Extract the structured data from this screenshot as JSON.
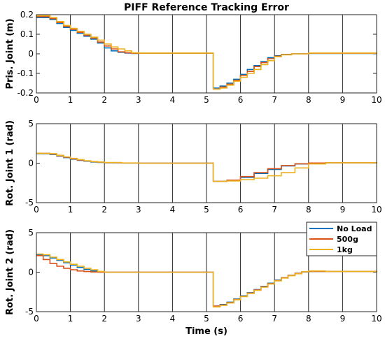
{
  "colors": {
    "No Load": "#0072BD",
    "500g": "#D95319",
    "1kg": "#EDB120"
  },
  "legend": {
    "placement": "top-right of bottom panel",
    "entries": [
      "No Load",
      "500g",
      "1kg"
    ]
  },
  "chart_data": [
    {
      "type": "line",
      "title": "PIFF Reference Tracking Error",
      "ylabel": "Pris. Joint (m)",
      "xlabel": "",
      "xlim": [
        0,
        10
      ],
      "ylim": [
        -0.2,
        0.2
      ],
      "xticks": [
        0,
        1,
        2,
        3,
        4,
        5,
        6,
        7,
        8,
        9,
        10
      ],
      "yticks": [
        0.2,
        0.1,
        0,
        -0.1,
        -0.2
      ],
      "ytick_labels": [
        "0.2",
        "0.1",
        "0",
        "-0.1",
        "-0.2"
      ],
      "grid": "vertical",
      "series": [
        {
          "name": "No Load",
          "x": [
            0,
            0.4,
            0.6,
            0.8,
            1.0,
            1.2,
            1.4,
            1.6,
            1.8,
            2.0,
            2.2,
            2.4,
            2.6,
            2.8,
            3.0,
            5.2,
            5.4,
            5.6,
            5.8,
            6.0,
            6.2,
            6.4,
            6.6,
            6.8,
            7.0,
            7.2,
            7.5,
            8.0,
            10
          ],
          "y": [
            0.185,
            0.175,
            0.155,
            0.135,
            0.12,
            0.105,
            0.09,
            0.075,
            0.055,
            0.03,
            0.015,
            0.008,
            0.004,
            0.002,
            0.003,
            -0.175,
            -0.165,
            -0.15,
            -0.13,
            -0.105,
            -0.08,
            -0.06,
            -0.04,
            -0.02,
            -0.01,
            -0.003,
            0,
            0.002,
            0
          ]
        },
        {
          "name": "500g",
          "x": [
            0,
            0.4,
            0.6,
            0.8,
            1.0,
            1.2,
            1.4,
            1.6,
            1.8,
            2.0,
            2.2,
            2.4,
            2.6,
            2.8,
            3.0,
            5.2,
            5.4,
            5.6,
            5.8,
            6.0,
            6.2,
            6.4,
            6.6,
            6.8,
            7.0,
            7.2,
            7.5,
            8.0,
            10
          ],
          "y": [
            0.19,
            0.18,
            0.16,
            0.14,
            0.125,
            0.11,
            0.095,
            0.08,
            0.06,
            0.04,
            0.025,
            0.01,
            0.005,
            0.003,
            0.003,
            -0.18,
            -0.17,
            -0.155,
            -0.135,
            -0.11,
            -0.09,
            -0.065,
            -0.045,
            -0.025,
            -0.012,
            -0.004,
            0,
            0.003,
            0
          ]
        },
        {
          "name": "1kg",
          "x": [
            0,
            0.4,
            0.6,
            0.8,
            1.0,
            1.2,
            1.4,
            1.6,
            1.8,
            2.0,
            2.2,
            2.4,
            2.6,
            2.8,
            3.0,
            5.2,
            5.4,
            5.6,
            5.8,
            6.0,
            6.2,
            6.4,
            6.6,
            6.8,
            7.0,
            7.2,
            7.5,
            8.0,
            10
          ],
          "y": [
            0.195,
            0.185,
            0.165,
            0.145,
            0.13,
            0.115,
            0.1,
            0.085,
            0.07,
            0.05,
            0.035,
            0.025,
            0.015,
            0.005,
            0.004,
            -0.18,
            -0.175,
            -0.16,
            -0.14,
            -0.12,
            -0.1,
            -0.08,
            -0.055,
            -0.035,
            -0.015,
            -0.005,
            0,
            0.004,
            0
          ]
        }
      ]
    },
    {
      "type": "line",
      "title": "",
      "ylabel": "Rot. Joint 1 (rad)",
      "xlabel": "",
      "xlim": [
        0,
        10
      ],
      "ylim": [
        -5,
        5
      ],
      "xticks": [
        0,
        1,
        2,
        3,
        4,
        5,
        6,
        7,
        8,
        9,
        10
      ],
      "yticks": [
        5,
        0,
        -5
      ],
      "ytick_labels": [
        "5",
        "0",
        "-5"
      ],
      "grid": "vertical",
      "series": [
        {
          "name": "No Load",
          "x": [
            0,
            0.4,
            0.6,
            0.8,
            1.0,
            1.2,
            1.4,
            1.6,
            1.8,
            2.0,
            2.5,
            3.0,
            5.2,
            5.6,
            6.0,
            6.4,
            6.8,
            7.2,
            7.6,
            8.0,
            8.5,
            10
          ],
          "y": [
            1.2,
            1.1,
            0.9,
            0.7,
            0.5,
            0.35,
            0.25,
            0.15,
            0.1,
            0.05,
            0.02,
            0,
            -2.3,
            -2.2,
            -1.8,
            -1.3,
            -0.8,
            -0.35,
            -0.1,
            0,
            0.05,
            0
          ]
        },
        {
          "name": "500g",
          "x": [
            0,
            0.4,
            0.6,
            0.8,
            1.0,
            1.2,
            1.4,
            1.6,
            1.8,
            2.0,
            2.5,
            3.0,
            5.2,
            5.6,
            6.0,
            6.4,
            6.8,
            7.2,
            7.6,
            8.0,
            8.5,
            10
          ],
          "y": [
            1.25,
            1.15,
            0.95,
            0.75,
            0.55,
            0.4,
            0.28,
            0.18,
            0.12,
            0.06,
            0.02,
            0,
            -2.3,
            -2.15,
            -1.7,
            -1.2,
            -0.7,
            -0.3,
            -0.08,
            0.02,
            0.05,
            0
          ]
        },
        {
          "name": "1kg",
          "x": [
            0,
            0.4,
            0.6,
            0.8,
            1.0,
            1.2,
            1.4,
            1.6,
            1.8,
            2.0,
            2.5,
            3.0,
            5.2,
            5.6,
            6.0,
            6.4,
            6.8,
            7.2,
            7.6,
            8.0,
            8.5,
            10
          ],
          "y": [
            1.25,
            1.2,
            1.0,
            0.8,
            0.6,
            0.45,
            0.3,
            0.2,
            0.14,
            0.08,
            0.03,
            0,
            -2.3,
            -2.25,
            -2.1,
            -1.9,
            -1.6,
            -1.2,
            -0.6,
            -0.1,
            0.05,
            0
          ]
        }
      ]
    },
    {
      "type": "line",
      "title": "",
      "ylabel": "Rot. Joint 2 (rad)",
      "xlabel": "Time (s)",
      "xlim": [
        0,
        10
      ],
      "ylim": [
        -5,
        5
      ],
      "xticks": [
        0,
        1,
        2,
        3,
        4,
        5,
        6,
        7,
        8,
        9,
        10
      ],
      "yticks": [
        5,
        0,
        -5
      ],
      "ytick_labels": [
        "5",
        "0",
        "-5"
      ],
      "grid": "vertical",
      "series": [
        {
          "name": "No Load",
          "x": [
            0,
            0.2,
            0.4,
            0.6,
            0.8,
            1.0,
            1.2,
            1.4,
            1.6,
            1.8,
            2.0,
            2.5,
            3.0,
            5.2,
            5.4,
            5.6,
            5.8,
            6.0,
            6.2,
            6.4,
            6.6,
            6.8,
            7.0,
            7.2,
            7.4,
            7.6,
            7.8,
            8.0,
            8.5,
            10
          ],
          "y": [
            2.2,
            2.1,
            1.8,
            1.5,
            1.2,
            0.9,
            0.6,
            0.35,
            0.15,
            0.05,
            0,
            0,
            0,
            -4.3,
            -4.1,
            -3.8,
            -3.4,
            -3.0,
            -2.6,
            -2.2,
            -1.8,
            -1.4,
            -1.0,
            -0.7,
            -0.4,
            -0.15,
            0.02,
            0.1,
            0.1,
            0
          ]
        },
        {
          "name": "500g",
          "x": [
            0,
            0.2,
            0.4,
            0.6,
            0.8,
            1.0,
            1.2,
            1.4,
            1.6,
            1.8,
            2.0,
            2.5,
            3.0,
            5.2,
            5.4,
            5.6,
            5.8,
            6.0,
            6.2,
            6.4,
            6.6,
            6.8,
            7.0,
            7.2,
            7.4,
            7.6,
            7.8,
            8.0,
            8.5,
            10
          ],
          "y": [
            2.1,
            1.6,
            1.1,
            0.75,
            0.5,
            0.3,
            0.15,
            0.08,
            0.03,
            0,
            0,
            0,
            0,
            -4.3,
            -4.15,
            -3.85,
            -3.45,
            -3.05,
            -2.65,
            -2.25,
            -1.85,
            -1.45,
            -1.05,
            -0.7,
            -0.4,
            -0.15,
            0.05,
            0.1,
            0.1,
            0
          ]
        },
        {
          "name": "1kg",
          "x": [
            0,
            0.2,
            0.4,
            0.6,
            0.8,
            1.0,
            1.2,
            1.4,
            1.6,
            1.8,
            2.0,
            2.5,
            3.0,
            5.2,
            5.4,
            5.6,
            5.8,
            6.0,
            6.2,
            6.4,
            6.6,
            6.8,
            7.0,
            7.2,
            7.4,
            7.6,
            7.8,
            8.0,
            8.5,
            10
          ],
          "y": [
            2.3,
            2.2,
            1.9,
            1.6,
            1.3,
            1.0,
            0.75,
            0.5,
            0.3,
            0.1,
            0,
            0,
            0,
            -4.4,
            -4.2,
            -3.9,
            -3.5,
            -3.1,
            -2.7,
            -2.3,
            -1.9,
            -1.5,
            -1.1,
            -0.75,
            -0.45,
            -0.2,
            0.05,
            0.15,
            0.1,
            0
          ]
        }
      ]
    }
  ]
}
